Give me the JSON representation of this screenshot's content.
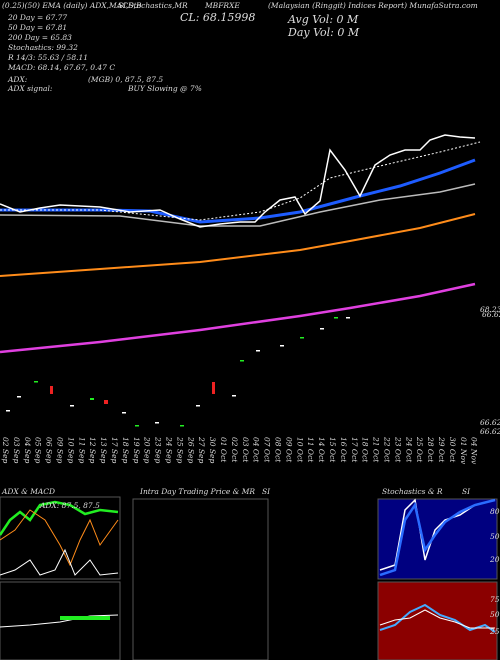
{
  "header": {
    "left_lines": [
      "20 Day = 67.77",
      "50 Day = 67.81",
      "200 Day = 65.83",
      "Stochastics: 99.32",
      "R 14/3: 55.63 / 58.11",
      "MACD: 68.14, 67.67, 0.47 C"
    ],
    "top_line": "(0.25)(50) EMA (daily) ADX,MACD,B",
    "top_middle": "SI,Stochastics,MR",
    "close": "CL: 68.15998",
    "symbol": "MBFRXE",
    "source": "(Malaysian (Ringgit) Indices Report) MunafaSutra.com",
    "avg_vol": "Avg Vol: 0  M",
    "day_vol": "Day Vol: 0  M",
    "adx_label": "ADX:",
    "adx_value": "(MGB) 0, 87.5, 87.5",
    "signal_label": "ADX  signal:",
    "signal_value": "BUY Slowing @ 7%"
  },
  "price_axis": [
    "68.23",
    "66.62",
    "66.62",
    "66.62(00)"
  ],
  "dates": [
    "02 Sep",
    "03 Sep",
    "04 Sep",
    "05 Sep",
    "06 Sep",
    "09 Sep",
    "10 Sep",
    "11 Sep",
    "12 Sep",
    "13 Sep",
    "17 Sep",
    "18 Sep",
    "19 Sep",
    "20 Sep",
    "23 Sep",
    "24 Sep",
    "25 Sep",
    "26 Sep",
    "27 Sep",
    "30 Sep",
    "01 Oct",
    "02 Oct",
    "03 Oct",
    "04 Oct",
    "07 Oct",
    "08 Oct",
    "09 Oct",
    "10 Oct",
    "11 Oct",
    "14 Oct",
    "15 Oct",
    "16 Oct",
    "17 Oct",
    "18 Oct",
    "21 Oct",
    "22 Oct",
    "23 Oct",
    "24 Oct",
    "25 Oct",
    "28 Oct",
    "29 Oct",
    "30 Oct",
    "01 Nov",
    "04 Nov"
  ],
  "panels": {
    "adx": {
      "title": "ADX  & MACD",
      "readout": "ADX: 87.5, 87.5"
    },
    "intraday": {
      "title": "Intra  Day Trading Price  & MR",
      "right": "SI"
    },
    "stoch": {
      "title": "Stochastics & R",
      "right": "SI",
      "ticks": [
        "80",
        "50",
        "20"
      ]
    },
    "rsi": {
      "ticks": [
        "75",
        "50",
        "25"
      ]
    }
  }
}
